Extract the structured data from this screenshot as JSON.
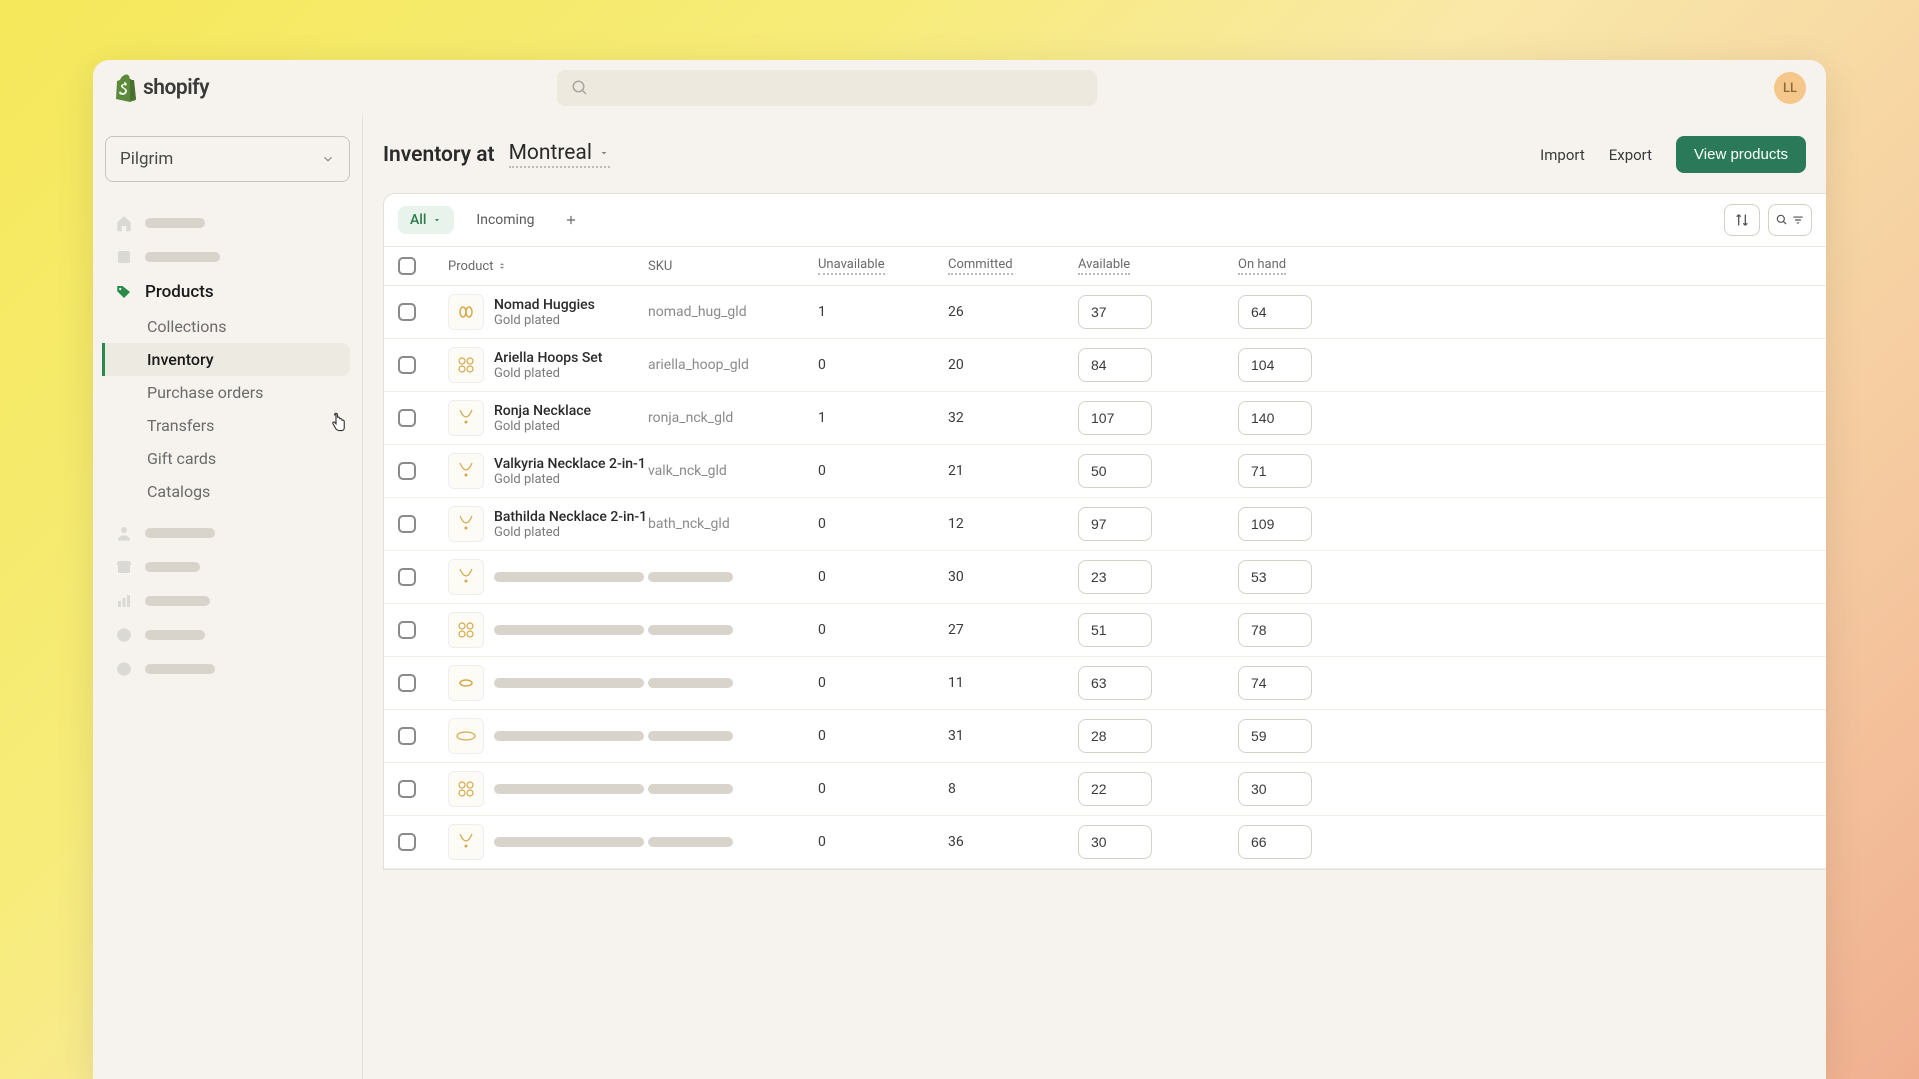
{
  "brand": "shopify",
  "avatar_initials": "LL",
  "store_name": "Pilgrim",
  "sidebar": {
    "products_label": "Products",
    "subs": [
      "Collections",
      "Inventory",
      "Purchase orders",
      "Transfers",
      "Gift cards",
      "Catalogs"
    ],
    "selected_index": 1
  },
  "header": {
    "title_prefix": "Inventory at",
    "location": "Montreal",
    "import": "Import",
    "export": "Export",
    "view_products": "View products"
  },
  "tabs": {
    "all": "All",
    "incoming": "Incoming"
  },
  "columns": {
    "product": "Product",
    "sku": "SKU",
    "unavailable": "Unavailable",
    "committed": "Committed",
    "available": "Available",
    "on_hand": "On hand"
  },
  "rows": [
    {
      "name": "Nomad Huggies",
      "variant": "Gold plated",
      "sku": "nomad_hug_gld",
      "unavailable": "1",
      "committed": "26",
      "available": "37",
      "on_hand": "64",
      "thumb": "huggies"
    },
    {
      "name": "Ariella Hoops Set",
      "variant": "Gold plated",
      "sku": "ariella_hoop_gld",
      "unavailable": "0",
      "committed": "20",
      "available": "84",
      "on_hand": "104",
      "thumb": "hoops"
    },
    {
      "name": "Ronja Necklace",
      "variant": "Gold plated",
      "sku": "ronja_nck_gld",
      "unavailable": "1",
      "committed": "32",
      "available": "107",
      "on_hand": "140",
      "thumb": "necklace"
    },
    {
      "name": "Valkyria Necklace 2-in-1",
      "variant": "Gold plated",
      "sku": "valk_nck_gld",
      "unavailable": "0",
      "committed": "21",
      "available": "50",
      "on_hand": "71",
      "thumb": "necklace2"
    },
    {
      "name": "Bathilda Necklace 2-in-1",
      "variant": "Gold plated",
      "sku": "bath_nck_gld",
      "unavailable": "0",
      "committed": "12",
      "available": "97",
      "on_hand": "109",
      "thumb": "necklace3"
    },
    {
      "skeleton": true,
      "unavailable": "0",
      "committed": "30",
      "available": "23",
      "on_hand": "53",
      "thumb": "necklace"
    },
    {
      "skeleton": true,
      "unavailable": "0",
      "committed": "27",
      "available": "51",
      "on_hand": "78",
      "thumb": "hoops"
    },
    {
      "skeleton": true,
      "unavailable": "0",
      "committed": "11",
      "available": "63",
      "on_hand": "74",
      "thumb": "ring"
    },
    {
      "skeleton": true,
      "unavailable": "0",
      "committed": "31",
      "available": "28",
      "on_hand": "59",
      "thumb": "bangle"
    },
    {
      "skeleton": true,
      "unavailable": "0",
      "committed": "8",
      "available": "22",
      "on_hand": "30",
      "thumb": "hoops2"
    },
    {
      "skeleton": true,
      "unavailable": "0",
      "committed": "36",
      "available": "30",
      "on_hand": "66",
      "thumb": "necklace"
    }
  ],
  "colors": {
    "accent_green": "#2a7a5a",
    "tab_green": "#2a7a4a",
    "skeleton": "#d8d4cb"
  }
}
